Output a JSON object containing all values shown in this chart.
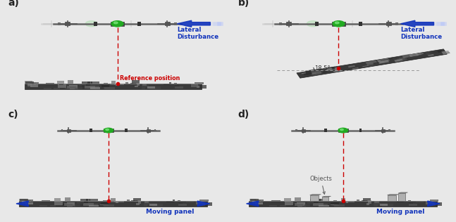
{
  "fig_width": 6.47,
  "fig_height": 3.16,
  "background_color": "#e8e8e8",
  "panel_bg": "#ffffff",
  "labels": [
    "a)",
    "b)",
    "c)",
    "d)"
  ],
  "label_color": "#222222",
  "label_fontsize": 10,
  "robot_color_bright": "#aaddaa",
  "robot_color_dark": "#22aa22",
  "robot_body_color": "#666666",
  "dashed_line_color": "#cc0000",
  "text_lateral": "Lateral\nDisturbance",
  "text_ref": "Reference position",
  "text_moving": "Moving panel",
  "text_objects": "Objects",
  "text_angle": "18.5°",
  "blue_arrow_color": "#1133bb",
  "panel_dark": "#444444",
  "panel_mid": "#666666",
  "panel_light": "#999999",
  "angle_line_color": "#aaaaaa",
  "border_color": "#cccccc"
}
